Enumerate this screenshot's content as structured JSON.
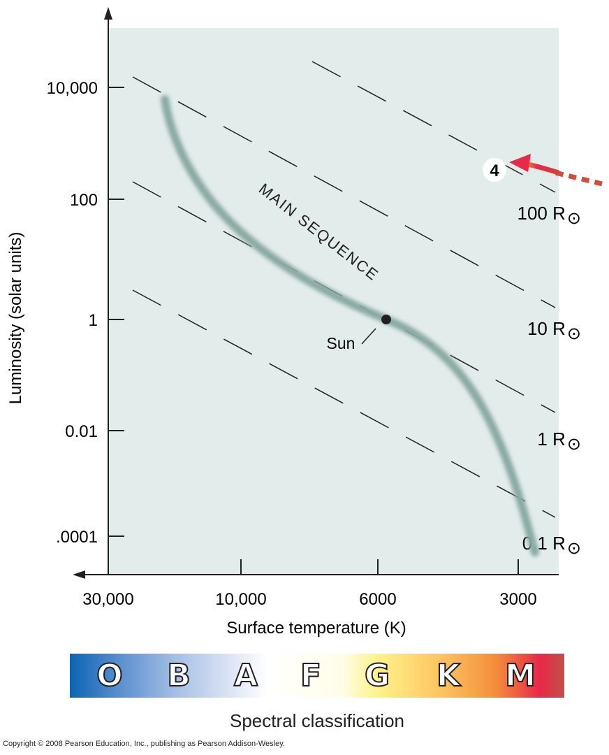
{
  "chart_data": {
    "type": "scatter",
    "title": "",
    "xlabel": "Surface temperature (K)",
    "ylabel": "Luminosity (solar units)",
    "x_scale": "log, reversed (hot on left)",
    "y_scale": "log",
    "x_ticks": [
      {
        "value": 30000,
        "label": "30,000"
      },
      {
        "value": 10000,
        "label": "10,000"
      },
      {
        "value": 6000,
        "label": "6000"
      },
      {
        "value": 3000,
        "label": "3000"
      }
    ],
    "y_ticks": [
      {
        "value": 10000,
        "label": "10,000"
      },
      {
        "value": 100,
        "label": "100"
      },
      {
        "value": 1,
        "label": "1"
      },
      {
        "value": 0.01,
        "label": "0.01"
      },
      {
        "value": 0.0001,
        "label": ".0001"
      }
    ],
    "grid": false,
    "background_color": "#e2ecea",
    "main_sequence": {
      "label": "MAIN SEQUENCE",
      "points": [
        [
          25000,
          6000
        ],
        [
          15000,
          300
        ],
        [
          9000,
          20
        ],
        [
          5800,
          1
        ],
        [
          4500,
          0.1
        ],
        [
          3500,
          0.005
        ],
        [
          2900,
          6e-05
        ]
      ]
    },
    "sun": {
      "label": "Sun",
      "temperature": 5800,
      "luminosity": 1
    },
    "radius_lines": [
      {
        "label": "100 R",
        "symbol": "⊙"
      },
      {
        "label": "10 R",
        "symbol": "⊙"
      },
      {
        "label": "1 R",
        "symbol": "⊙"
      },
      {
        "label": "0.1 R",
        "symbol": "⊙"
      }
    ],
    "marker": {
      "label": "4",
      "temperature": 3400,
      "luminosity": 400,
      "arrow_color": "#e03040"
    }
  },
  "spectral": {
    "title": "Spectral classification",
    "classes": [
      "O",
      "B",
      "A",
      "F",
      "G",
      "K",
      "M"
    ]
  },
  "copyright": "Copyright © 2008 Pearson Education, Inc., publishing as Pearson Addison-Wesley."
}
